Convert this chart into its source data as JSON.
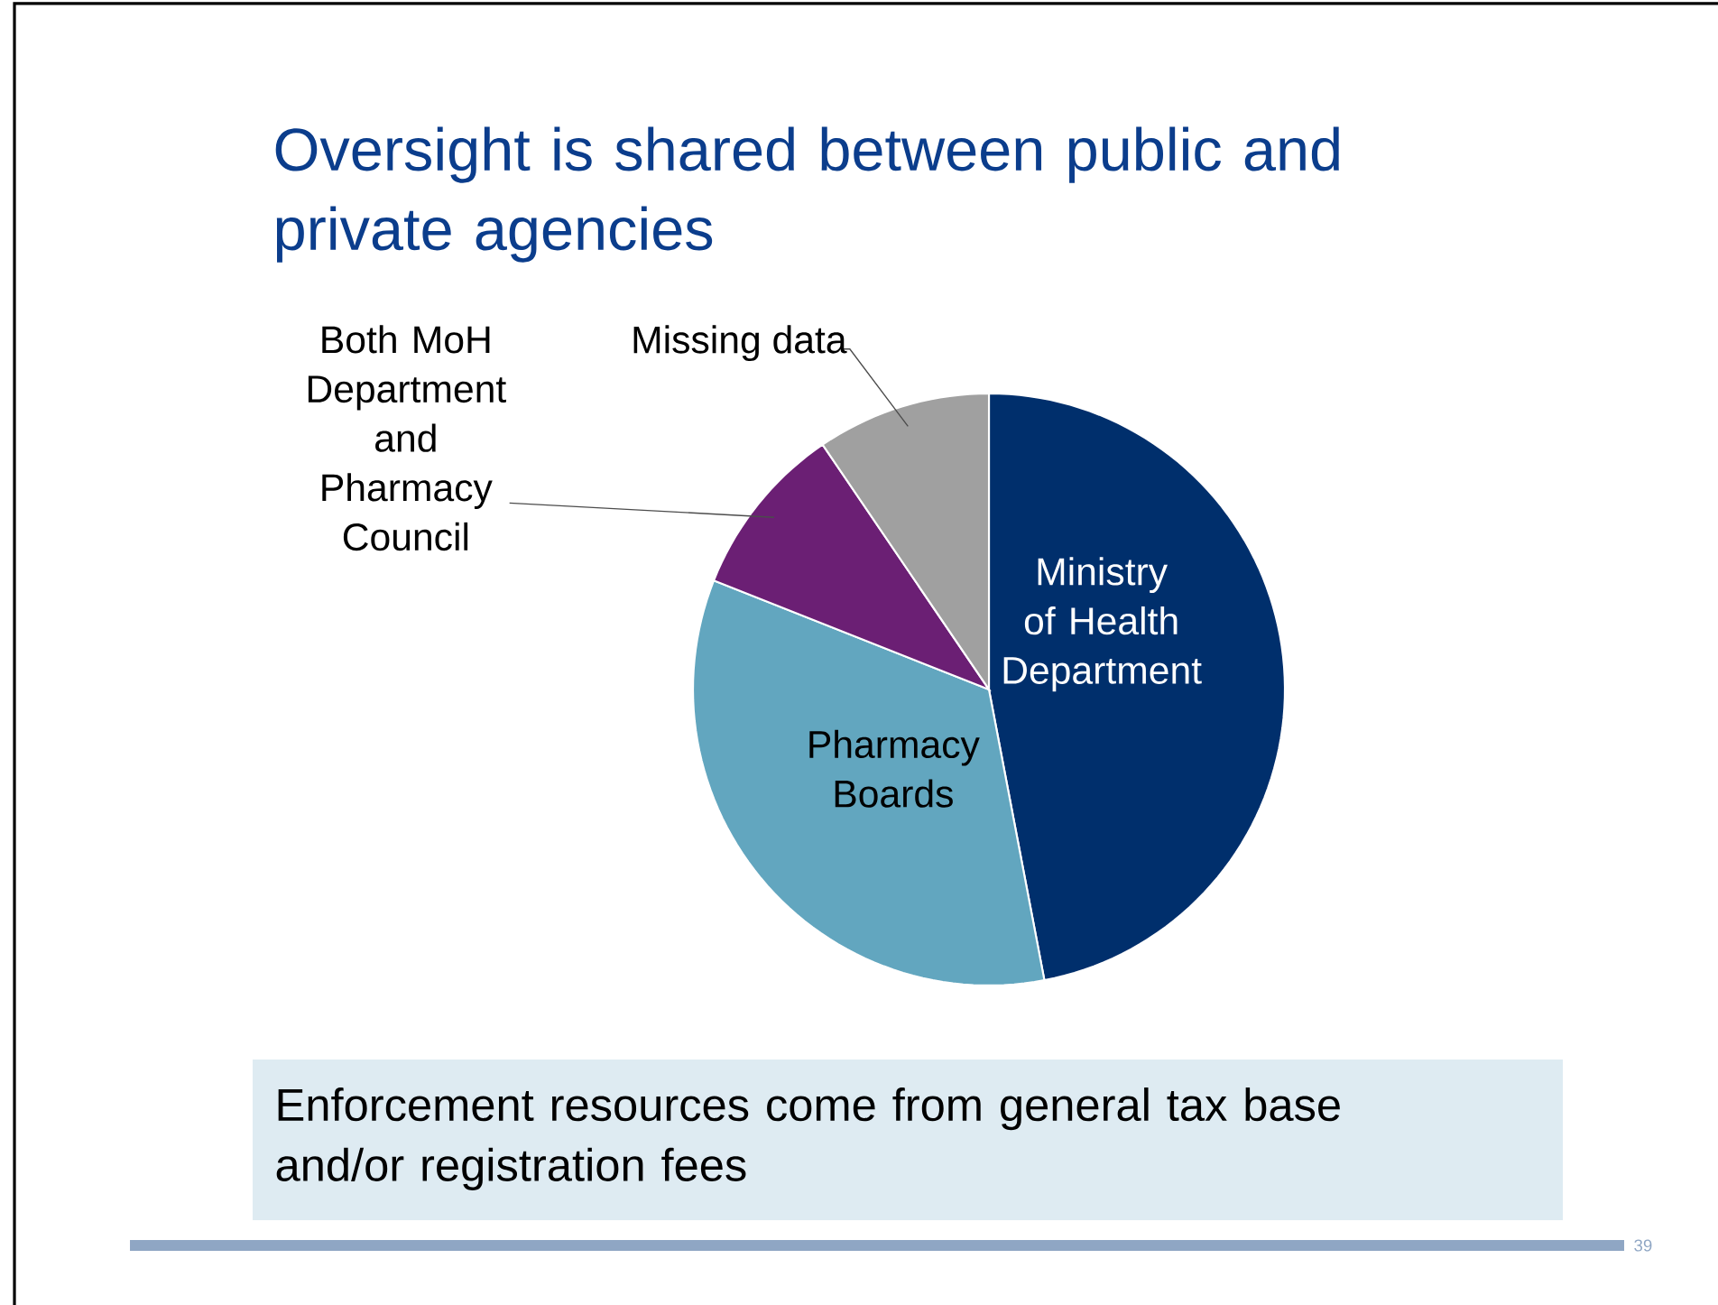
{
  "chart_data": {
    "type": "pie",
    "title": "Oversight is shared between public and private agencies",
    "categories": [
      "Ministry of Health Department",
      "Pharmacy Boards",
      "Both MoH Department and Pharmacy Council",
      "Missing data"
    ],
    "values": [
      47,
      34,
      9.5,
      9.5
    ],
    "colors": [
      "#002f6c",
      "#62a6bf",
      "#6b1f74",
      "#a0a0a0"
    ],
    "annotations": [
      "Enforcement resources come from general tax base and/or registration fees",
      "39"
    ]
  }
}
